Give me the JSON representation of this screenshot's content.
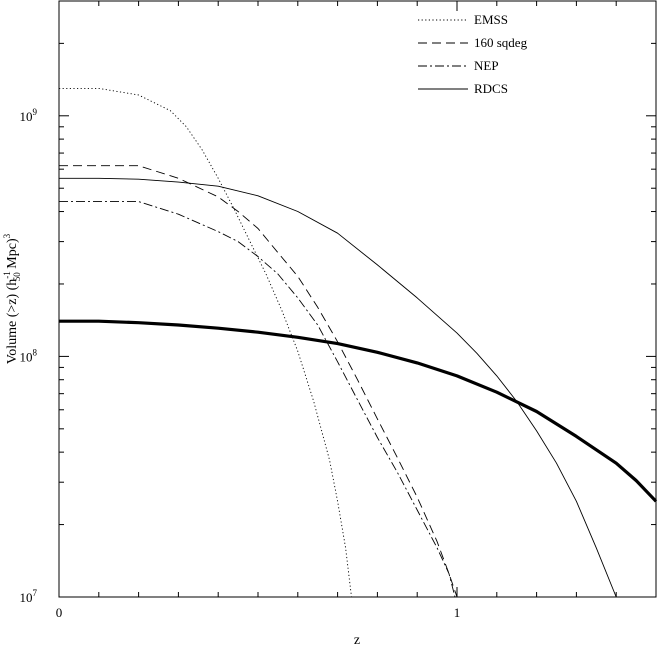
{
  "chart_data": {
    "type": "line",
    "xlabel": "z",
    "ylabel": {
      "main": "Volume (>z) (h",
      "sup": "-1",
      "sub": "50",
      "unit": " Mpc)",
      "exp": "3"
    },
    "x_scale": "linear",
    "y_scale": "log",
    "xlim": [
      0,
      1.5
    ],
    "ylim": [
      10000000.0,
      3000000000.0
    ],
    "x_major_ticks": [
      {
        "value": 0,
        "label": "0"
      },
      {
        "value": 1,
        "label": "1"
      }
    ],
    "x_minor_ticks": [
      0.1,
      0.2,
      0.3,
      0.4,
      0.5,
      0.6,
      0.7,
      0.8,
      0.9,
      1.1,
      1.2,
      1.3,
      1.4
    ],
    "y_major_ticks": [
      {
        "value": 10000000.0,
        "base": "10",
        "exp": "7"
      },
      {
        "value": 100000000.0,
        "base": "10",
        "exp": "8"
      },
      {
        "value": 1000000000.0,
        "base": "10",
        "exp": "9"
      }
    ],
    "y_minor_ticks": [
      20000000.0,
      30000000.0,
      40000000.0,
      50000000.0,
      60000000.0,
      70000000.0,
      80000000.0,
      90000000.0,
      200000000.0,
      300000000.0,
      400000000.0,
      500000000.0,
      600000000.0,
      700000000.0,
      800000000.0,
      900000000.0,
      2000000000.0,
      3000000000.0
    ],
    "grid": false,
    "legend_position": "top-right",
    "series": [
      {
        "name": "EMSS",
        "style": "dotted",
        "width": "thin",
        "x": [
          0,
          0.1,
          0.2,
          0.28,
          0.32,
          0.36,
          0.4,
          0.44,
          0.48,
          0.52,
          0.56,
          0.6,
          0.64,
          0.68,
          0.7,
          0.72,
          0.735
        ],
        "y": [
          1300000000.0,
          1300000000.0,
          1220000000.0,
          1050000000.0,
          900000000.0,
          720000000.0,
          550000000.0,
          410000000.0,
          300000000.0,
          220000000.0,
          155000000.0,
          105000000.0,
          65000000.0,
          37000000.0,
          25000000.0,
          16000000.0,
          10000000.0
        ]
      },
      {
        "name": "160 sqdeg",
        "style": "dashed",
        "width": "thin",
        "x": [
          0,
          0.1,
          0.2,
          0.3,
          0.4,
          0.45,
          0.5,
          0.55,
          0.6,
          0.65,
          0.7,
          0.75,
          0.8,
          0.85,
          0.9,
          0.95,
          0.98,
          1.0
        ],
        "y": [
          620000000.0,
          620000000.0,
          620000000.0,
          550000000.0,
          460000000.0,
          400000000.0,
          340000000.0,
          270000000.0,
          215000000.0,
          160000000.0,
          115000000.0,
          80000000.0,
          55000000.0,
          38000000.0,
          26000000.0,
          17000000.0,
          12500000.0,
          10000000.0
        ]
      },
      {
        "name": "NEP",
        "style": "dashdot",
        "width": "thin",
        "x": [
          0,
          0.1,
          0.2,
          0.3,
          0.4,
          0.45,
          0.5,
          0.55,
          0.6,
          0.65,
          0.7,
          0.75,
          0.8,
          0.85,
          0.9,
          0.95,
          0.98,
          0.995
        ],
        "y": [
          440000000.0,
          440000000.0,
          440000000.0,
          390000000.0,
          330000000.0,
          300000000.0,
          260000000.0,
          220000000.0,
          175000000.0,
          135000000.0,
          95000000.0,
          66000000.0,
          46000000.0,
          33000000.0,
          23000000.0,
          16000000.0,
          12500000.0,
          10000000.0
        ]
      },
      {
        "name": "RDCS",
        "style": "solid",
        "width": "thin",
        "x": [
          0,
          0.1,
          0.2,
          0.3,
          0.4,
          0.5,
          0.6,
          0.7,
          0.8,
          0.9,
          1.0,
          1.05,
          1.1,
          1.15,
          1.2,
          1.25,
          1.3,
          1.35,
          1.4
        ],
        "y": [
          550000000.0,
          550000000.0,
          545000000.0,
          530000000.0,
          510000000.0,
          465000000.0,
          400000000.0,
          325000000.0,
          240000000.0,
          175000000.0,
          125000000.0,
          103000000.0,
          83000000.0,
          65000000.0,
          49000000.0,
          36000000.0,
          25000000.0,
          16000000.0,
          10000000.0
        ]
      },
      {
        "name": "",
        "style": "solid",
        "width": "thick",
        "x": [
          0,
          0.1,
          0.2,
          0.3,
          0.4,
          0.5,
          0.6,
          0.7,
          0.8,
          0.9,
          1.0,
          1.1,
          1.2,
          1.3,
          1.4,
          1.45,
          1.5
        ],
        "y": [
          140000000.0,
          140000000.0,
          138000000.0,
          135000000.0,
          131000000.0,
          126000000.0,
          120000000.0,
          113000000.0,
          104000000.0,
          94000000.0,
          83000000.0,
          71000000.0,
          59000000.0,
          46500000.0,
          36000000.0,
          30500000.0,
          25000000.0
        ]
      }
    ]
  }
}
